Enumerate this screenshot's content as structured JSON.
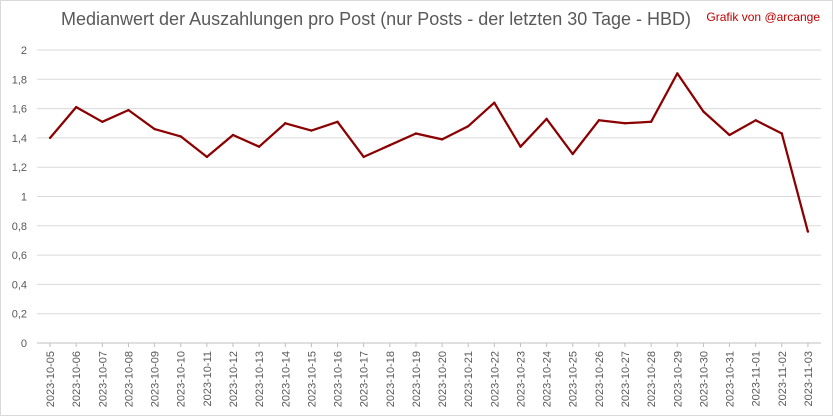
{
  "title": "Medianwert der Auszahlungen pro Post (nur Posts - der letzten 30 Tage - HBD)",
  "credit": "Grafik von @arcange",
  "colors": {
    "line": "#8b0000",
    "credit": "#c00000",
    "grid": "#d9d9d9",
    "text": "#595959"
  },
  "chart_data": {
    "type": "line",
    "title": "Medianwert der Auszahlungen pro Post (nur Posts - der letzten 30 Tage - HBD)",
    "xlabel": "",
    "ylabel": "",
    "ylim": [
      0,
      2
    ],
    "y_ticks": [
      "0",
      "0,2",
      "0,4",
      "0,6",
      "0,8",
      "1",
      "1,2",
      "1,4",
      "1,6",
      "1,8",
      "2"
    ],
    "y_tick_values": [
      0,
      0.2,
      0.4,
      0.6,
      0.8,
      1.0,
      1.2,
      1.4,
      1.6,
      1.8,
      2.0
    ],
    "grid": true,
    "legend": "none",
    "categories": [
      "2023-10-05",
      "2023-10-06",
      "2023-10-07",
      "2023-10-08",
      "2023-10-09",
      "2023-10-10",
      "2023-10-11",
      "2023-10-12",
      "2023-10-13",
      "2023-10-14",
      "2023-10-15",
      "2023-10-16",
      "2023-10-17",
      "2023-10-18",
      "2023-10-19",
      "2023-10-20",
      "2023-10-21",
      "2023-10-22",
      "2023-10-23",
      "2023-10-24",
      "2023-10-25",
      "2023-10-26",
      "2023-10-27",
      "2023-10-28",
      "2023-10-29",
      "2023-10-30",
      "2023-10-31",
      "2023-11-01",
      "2023-11-02",
      "2023-11-03"
    ],
    "series": [
      {
        "values": [
          1.4,
          1.61,
          1.51,
          1.59,
          1.46,
          1.41,
          1.27,
          1.42,
          1.34,
          1.5,
          1.45,
          1.51,
          1.27,
          1.35,
          1.43,
          1.39,
          1.48,
          1.64,
          1.34,
          1.53,
          1.29,
          1.52,
          1.5,
          1.51,
          1.84,
          1.58,
          1.42,
          1.52,
          1.43,
          0.76
        ]
      }
    ]
  }
}
